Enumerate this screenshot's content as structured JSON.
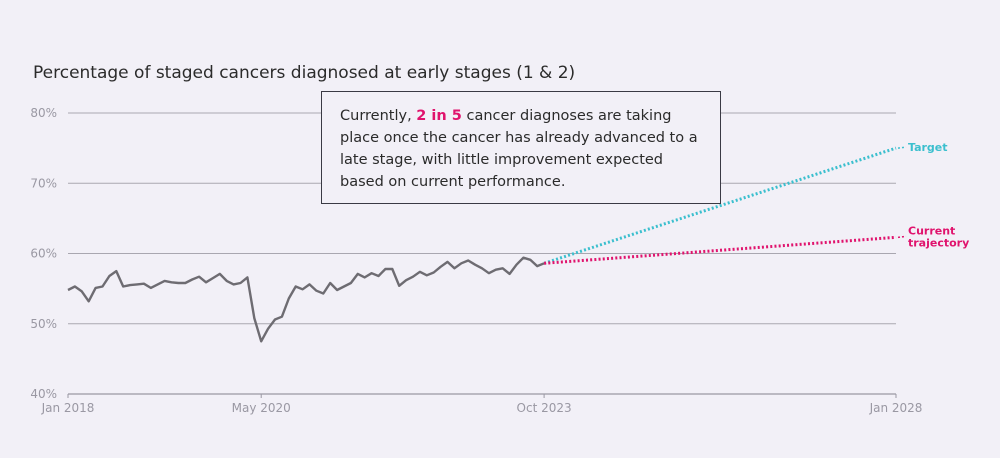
{
  "chart_data": {
    "type": "line",
    "title": "Percentage of staged cancers diagnosed at early stages (1 & 2)",
    "ylim": [
      40,
      80
    ],
    "y_ticks": [
      "40%",
      "50%",
      "60%",
      "70%",
      "80%"
    ],
    "y_tick_values": [
      40,
      50,
      60,
      70,
      80
    ],
    "x_ticks": [
      "Jan 2018",
      "May 2020",
      "Oct 2023",
      "Jan 2028"
    ],
    "x_tick_months": [
      0,
      28,
      69,
      120
    ],
    "grid": true,
    "series": [
      {
        "name": "",
        "color": "#6e6c72",
        "style": "solid",
        "x_months": [
          0,
          1,
          2,
          3,
          4,
          5,
          6,
          7,
          8,
          9,
          10,
          11,
          12,
          13,
          14,
          15,
          16,
          17,
          18,
          19,
          20,
          21,
          22,
          23,
          24,
          25,
          26,
          27,
          28,
          29,
          30,
          31,
          32,
          33,
          34,
          35,
          36,
          37,
          38,
          39,
          40,
          41,
          42,
          43,
          44,
          45,
          46,
          47,
          48,
          49,
          50,
          51,
          52,
          53,
          54,
          55,
          56,
          57,
          58,
          59,
          60,
          61,
          62,
          63,
          64,
          65,
          66,
          67,
          68,
          69
        ],
        "values": [
          54.8,
          55.3,
          54.6,
          53.2,
          55.1,
          55.3,
          56.8,
          57.5,
          55.3,
          55.5,
          55.6,
          55.7,
          55.1,
          55.6,
          56.1,
          55.9,
          55.8,
          55.8,
          56.3,
          56.7,
          55.9,
          56.5,
          57.1,
          56.1,
          55.6,
          55.8,
          56.6,
          50.8,
          47.5,
          49.3,
          50.6,
          51.0,
          53.6,
          55.3,
          54.9,
          55.6,
          54.7,
          54.3,
          55.8,
          54.8,
          55.3,
          55.8,
          57.1,
          56.6,
          57.2,
          56.8,
          57.8,
          57.8,
          55.4,
          56.2,
          56.7,
          57.4,
          56.9,
          57.3,
          58.1,
          58.8,
          57.9,
          58.6,
          59.0,
          58.4,
          57.9,
          57.2,
          57.7,
          57.9,
          57.1,
          58.4,
          59.4,
          59.1,
          58.2,
          58.6
        ]
      },
      {
        "name": "Target",
        "color": "#3bbfce",
        "style": "dotted",
        "x_months": [
          69,
          120
        ],
        "values": [
          58.6,
          75.0
        ]
      },
      {
        "name": "Current trajectory",
        "color": "#e0136d",
        "style": "dotted",
        "x_months": [
          69,
          120
        ],
        "values": [
          58.6,
          62.3
        ]
      }
    ],
    "annotation": {
      "before": "Currently, ",
      "highlight": "2 in 5",
      "after": " cancer diagnoses are taking place once the cancer has already advanced to a late stage, with little improvement expected based on current performance."
    }
  }
}
